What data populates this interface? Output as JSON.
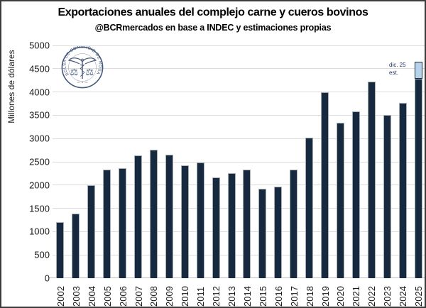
{
  "header": {
    "title": "Exportaciones anuales del complejo carne y cueros bovinos",
    "subtitle": "@BCRmercados en base a INDEC y estimaciones propias"
  },
  "logo": {
    "name": "Bolsa de Comercio de Rosario seal",
    "ring_text": "BOLSA DE COMERCIO DE ROSARIO",
    "color": "#45597c"
  },
  "annotation": {
    "line1": "dic. 25",
    "line2": "est."
  },
  "chart_data": {
    "type": "bar",
    "title": "Exportaciones anuales del complejo carne y cueros bovinos",
    "subtitle": "@BCRmercados en base a INDEC y estimaciones propias",
    "xlabel": "",
    "ylabel": "Millones de dólares",
    "ylim": [
      0,
      5000
    ],
    "yticks": [
      0,
      500,
      1000,
      1500,
      2000,
      2500,
      3000,
      3500,
      4000,
      4500,
      5000
    ],
    "grid": true,
    "legend": null,
    "categories": [
      "2002",
      "2003",
      "2004",
      "2005",
      "2006",
      "2007",
      "2008",
      "2009",
      "2010",
      "2011",
      "2012",
      "2013",
      "2014",
      "2015",
      "2016",
      "2017",
      "2018",
      "2019",
      "2020",
      "2021",
      "2022",
      "2023",
      "2024",
      "2025"
    ],
    "values": [
      1210,
      1390,
      1990,
      2330,
      2360,
      2630,
      2760,
      2650,
      2420,
      2490,
      2170,
      2250,
      2340,
      1920,
      1970,
      2340,
      3020,
      3990,
      3340,
      3580,
      4230,
      3510,
      3760,
      4280
    ],
    "estimate": {
      "category": "2025",
      "actual_value": 4280,
      "estimated_total": 4650,
      "annotation": "dic. 25 est."
    },
    "colors": {
      "bar_fill": "#16293e",
      "bar_border": "#a6adb5",
      "estimate_fill": "#b7d3ec",
      "estimate_border": "#16293e",
      "gridline": "#dcdcdc",
      "axis_line": "#bfbfbf",
      "annotation_text": "#1f3864"
    }
  }
}
